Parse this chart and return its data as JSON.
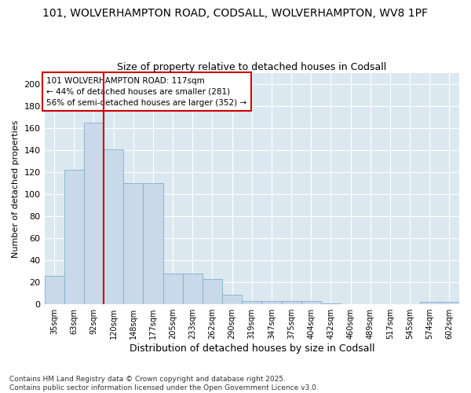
{
  "title1": "101, WOLVERHAMPTON ROAD, CODSALL, WOLVERHAMPTON, WV8 1PF",
  "title2": "Size of property relative to detached houses in Codsall",
  "xlabel": "Distribution of detached houses by size in Codsall",
  "ylabel": "Number of detached properties",
  "categories": [
    "35sqm",
    "63sqm",
    "92sqm",
    "120sqm",
    "148sqm",
    "177sqm",
    "205sqm",
    "233sqm",
    "262sqm",
    "290sqm",
    "319sqm",
    "347sqm",
    "375sqm",
    "404sqm",
    "432sqm",
    "460sqm",
    "489sqm",
    "517sqm",
    "545sqm",
    "574sqm",
    "602sqm"
  ],
  "values": [
    26,
    122,
    165,
    141,
    110,
    110,
    28,
    28,
    23,
    9,
    3,
    3,
    3,
    3,
    1,
    0,
    0,
    0,
    0,
    2,
    2
  ],
  "bar_color": "#c9d9ea",
  "bar_edge_color": "#7fb0d0",
  "vline_color": "#cc0000",
  "vline_index": 2.5,
  "annotation_line1": "101 WOLVERHAMPTON ROAD: 117sqm",
  "annotation_line2": "← 44% of detached houses are smaller (281)",
  "annotation_line3": "56% of semi-detached houses are larger (352) →",
  "annotation_box_color": "#ffffff",
  "annotation_box_edge": "#cc0000",
  "ylim": [
    0,
    210
  ],
  "yticks": [
    0,
    20,
    40,
    60,
    80,
    100,
    120,
    140,
    160,
    180,
    200
  ],
  "footnote": "Contains HM Land Registry data © Crown copyright and database right 2025.\nContains public sector information licensed under the Open Government Licence v3.0.",
  "bg_color": "#ffffff",
  "plot_bg_color": "#dce8f0",
  "grid_color": "#ffffff",
  "title1_fontsize": 10,
  "title2_fontsize": 9,
  "xlabel_fontsize": 9,
  "ylabel_fontsize": 8,
  "xtick_fontsize": 7,
  "ytick_fontsize": 8,
  "footnote_fontsize": 6.5
}
